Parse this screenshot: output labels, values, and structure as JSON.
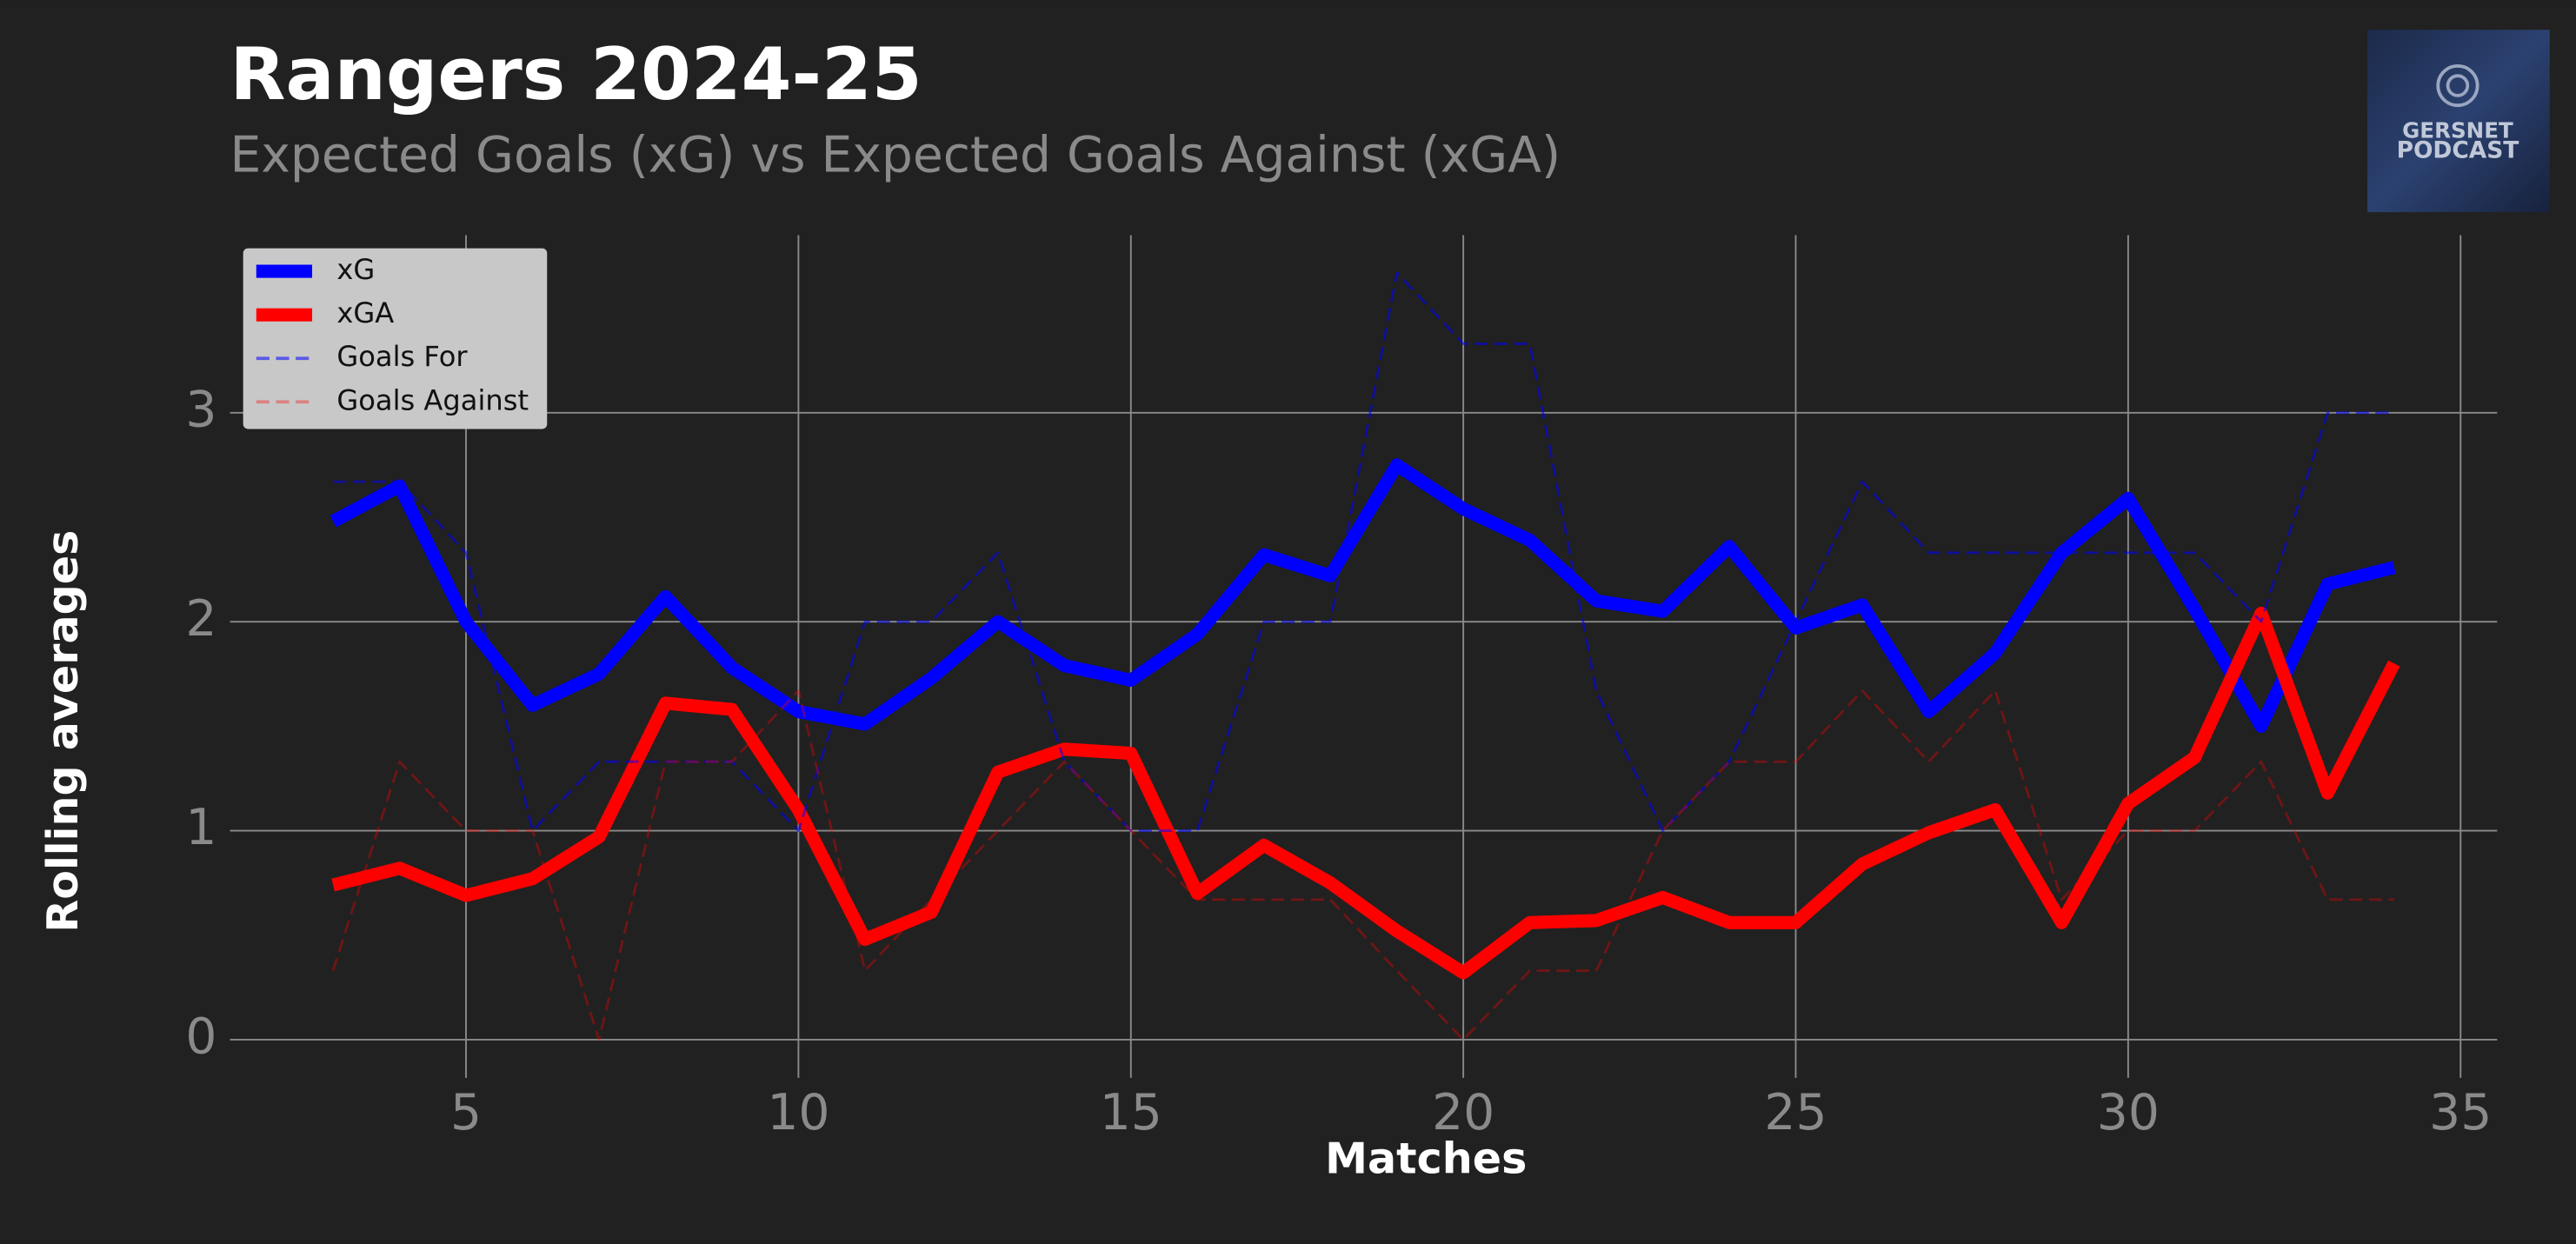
{
  "chart_data": {
    "type": "line",
    "title": "Rangers 2024-25",
    "subtitle": "Expected Goals (xG) vs Expected Goals Against (xGA)",
    "xlabel": "Matches",
    "ylabel": "Rolling averages",
    "logo": [
      "GERSNET",
      "PODCAST"
    ],
    "x": [
      3,
      4,
      5,
      6,
      7,
      8,
      9,
      10,
      11,
      12,
      13,
      14,
      15,
      16,
      17,
      18,
      19,
      20,
      21,
      22,
      23,
      24,
      25,
      26,
      27,
      28,
      29,
      30,
      31,
      32,
      33,
      34
    ],
    "series": [
      {
        "name": "xG",
        "color": "#0000ff",
        "linestyle": "solid",
        "linewidth": 8,
        "alpha": 1,
        "values": [
          2.48,
          2.65,
          2.0,
          1.6,
          1.75,
          2.12,
          1.78,
          1.57,
          1.51,
          1.73,
          2.0,
          1.79,
          1.72,
          1.94,
          2.32,
          2.22,
          2.75,
          2.54,
          2.39,
          2.1,
          2.05,
          2.36,
          1.97,
          2.08,
          1.57,
          1.85,
          2.33,
          2.59,
          2.06,
          1.5,
          2.18,
          2.26
        ]
      },
      {
        "name": "xGA",
        "color": "#ff0000",
        "linestyle": "solid",
        "linewidth": 8,
        "alpha": 1,
        "values": [
          0.74,
          0.82,
          0.69,
          0.77,
          0.97,
          1.61,
          1.58,
          1.1,
          0.48,
          0.61,
          1.28,
          1.39,
          1.37,
          0.7,
          0.93,
          0.75,
          0.52,
          0.32,
          0.56,
          0.57,
          0.68,
          0.56,
          0.56,
          0.84,
          0.99,
          1.1,
          0.56,
          1.13,
          1.35,
          2.04,
          1.18,
          1.8
        ]
      },
      {
        "name": "Goals For",
        "color": "#0000ff",
        "linestyle": "dashed",
        "linewidth": 1.5,
        "alpha": 0.55,
        "values": [
          2.67,
          2.67,
          2.33,
          1.0,
          1.33,
          1.33,
          1.33,
          1.0,
          2.0,
          2.0,
          2.33,
          1.33,
          1.0,
          1.0,
          2.0,
          2.0,
          3.67,
          3.33,
          3.33,
          1.67,
          1.0,
          1.33,
          2.0,
          2.67,
          2.33,
          2.33,
          2.33,
          2.33,
          2.33,
          2.0,
          3.0,
          3.0
        ]
      },
      {
        "name": "Goals Against",
        "color": "#ff0000",
        "linestyle": "dashed",
        "linewidth": 1.5,
        "alpha": 0.35,
        "values": [
          0.33,
          1.33,
          1.0,
          1.0,
          0,
          1.33,
          1.33,
          1.67,
          0.33,
          0.67,
          1.0,
          1.33,
          1.0,
          0.67,
          0.67,
          0.67,
          0.33,
          0,
          0.33,
          0.33,
          1.0,
          1.33,
          1.33,
          1.67,
          1.33,
          1.67,
          0.67,
          1.0,
          1.0,
          1.33,
          0.67,
          0.67
        ]
      }
    ],
    "xlim": [
      1.45,
      35.55
    ],
    "ylim": [
      -0.183,
      3.85
    ],
    "xticks": [
      5,
      10,
      15,
      20,
      25,
      30,
      35
    ],
    "yticks": [
      0,
      1,
      2,
      3
    ],
    "grid": true,
    "legend": "upper left"
  }
}
